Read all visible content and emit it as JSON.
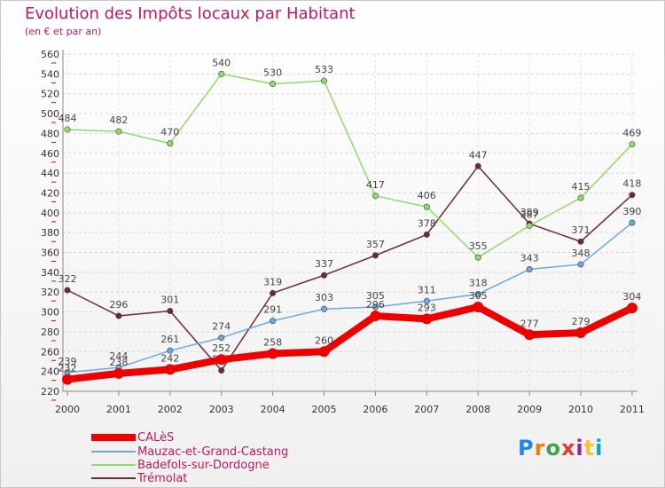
{
  "title": "Evolution des Impôts locaux par Habitant",
  "subtitle": "(en € et par an)",
  "logo": {
    "text": "Proxiti",
    "letter_colors": [
      "#1e88e5",
      "#f57c00",
      "#43a047",
      "#e53935",
      "#8e24aa",
      "#fbc02d",
      "#00acc1"
    ]
  },
  "chart_data": {
    "type": "line",
    "title": "Evolution des Impôts locaux par Habitant",
    "subtitle": "(en € et par an)",
    "xlabel": "",
    "ylabel": "",
    "x": [
      "2000",
      "2001",
      "2002",
      "2003",
      "2004",
      "2005",
      "2006",
      "2007",
      "2008",
      "2009",
      "2010",
      "2011"
    ],
    "ylim": [
      220,
      560
    ],
    "yticks": [
      220,
      240,
      260,
      280,
      300,
      320,
      340,
      360,
      380,
      400,
      420,
      440,
      460,
      480,
      500,
      520,
      540,
      560
    ],
    "grid": true,
    "legend_position": "bottom-left",
    "series": [
      {
        "name": "Trémolat",
        "color": "#6d2b2b",
        "values": [
          322,
          296,
          301,
          241,
          319,
          337,
          357,
          378,
          447,
          389,
          371,
          418
        ],
        "labels": [
          "322",
          "296",
          "301",
          "241",
          "319",
          "337",
          "357",
          "378",
          "447",
          "389",
          "371",
          "418"
        ]
      },
      {
        "name": "Badefols-sur-Dordogne",
        "color": "#8fdc6a",
        "values": [
          484,
          482,
          470,
          540,
          530,
          533,
          417,
          406,
          355,
          387,
          415,
          469
        ],
        "labels": [
          "484",
          "482",
          "470",
          "540",
          "530",
          "533",
          "417",
          "406",
          "355",
          "387",
          "415",
          "469"
        ]
      },
      {
        "name": "Mauzac-et-Grand-Castang",
        "color": "#6fa8dc",
        "values": [
          239,
          244,
          261,
          274,
          291,
          303,
          305,
          311,
          318,
          343,
          348,
          390
        ],
        "labels": [
          "239",
          "244",
          "261",
          "274",
          "291",
          "303",
          "305",
          "311",
          "318",
          "343",
          "348",
          "390"
        ]
      },
      {
        "name": "CALèS",
        "color": "#ee0000",
        "values": [
          232,
          238,
          242,
          252,
          258,
          260,
          296,
          293,
          305,
          277,
          279,
          304
        ],
        "labels": [
          "232",
          "238",
          "242",
          "252",
          "258",
          "260",
          "296",
          "293",
          "305",
          "277",
          "279",
          "304"
        ]
      }
    ],
    "legend": [
      "CALèS",
      "Mauzac-et-Grand-Castang",
      "Badefols-sur-Dordogne",
      "Trémolat"
    ]
  }
}
